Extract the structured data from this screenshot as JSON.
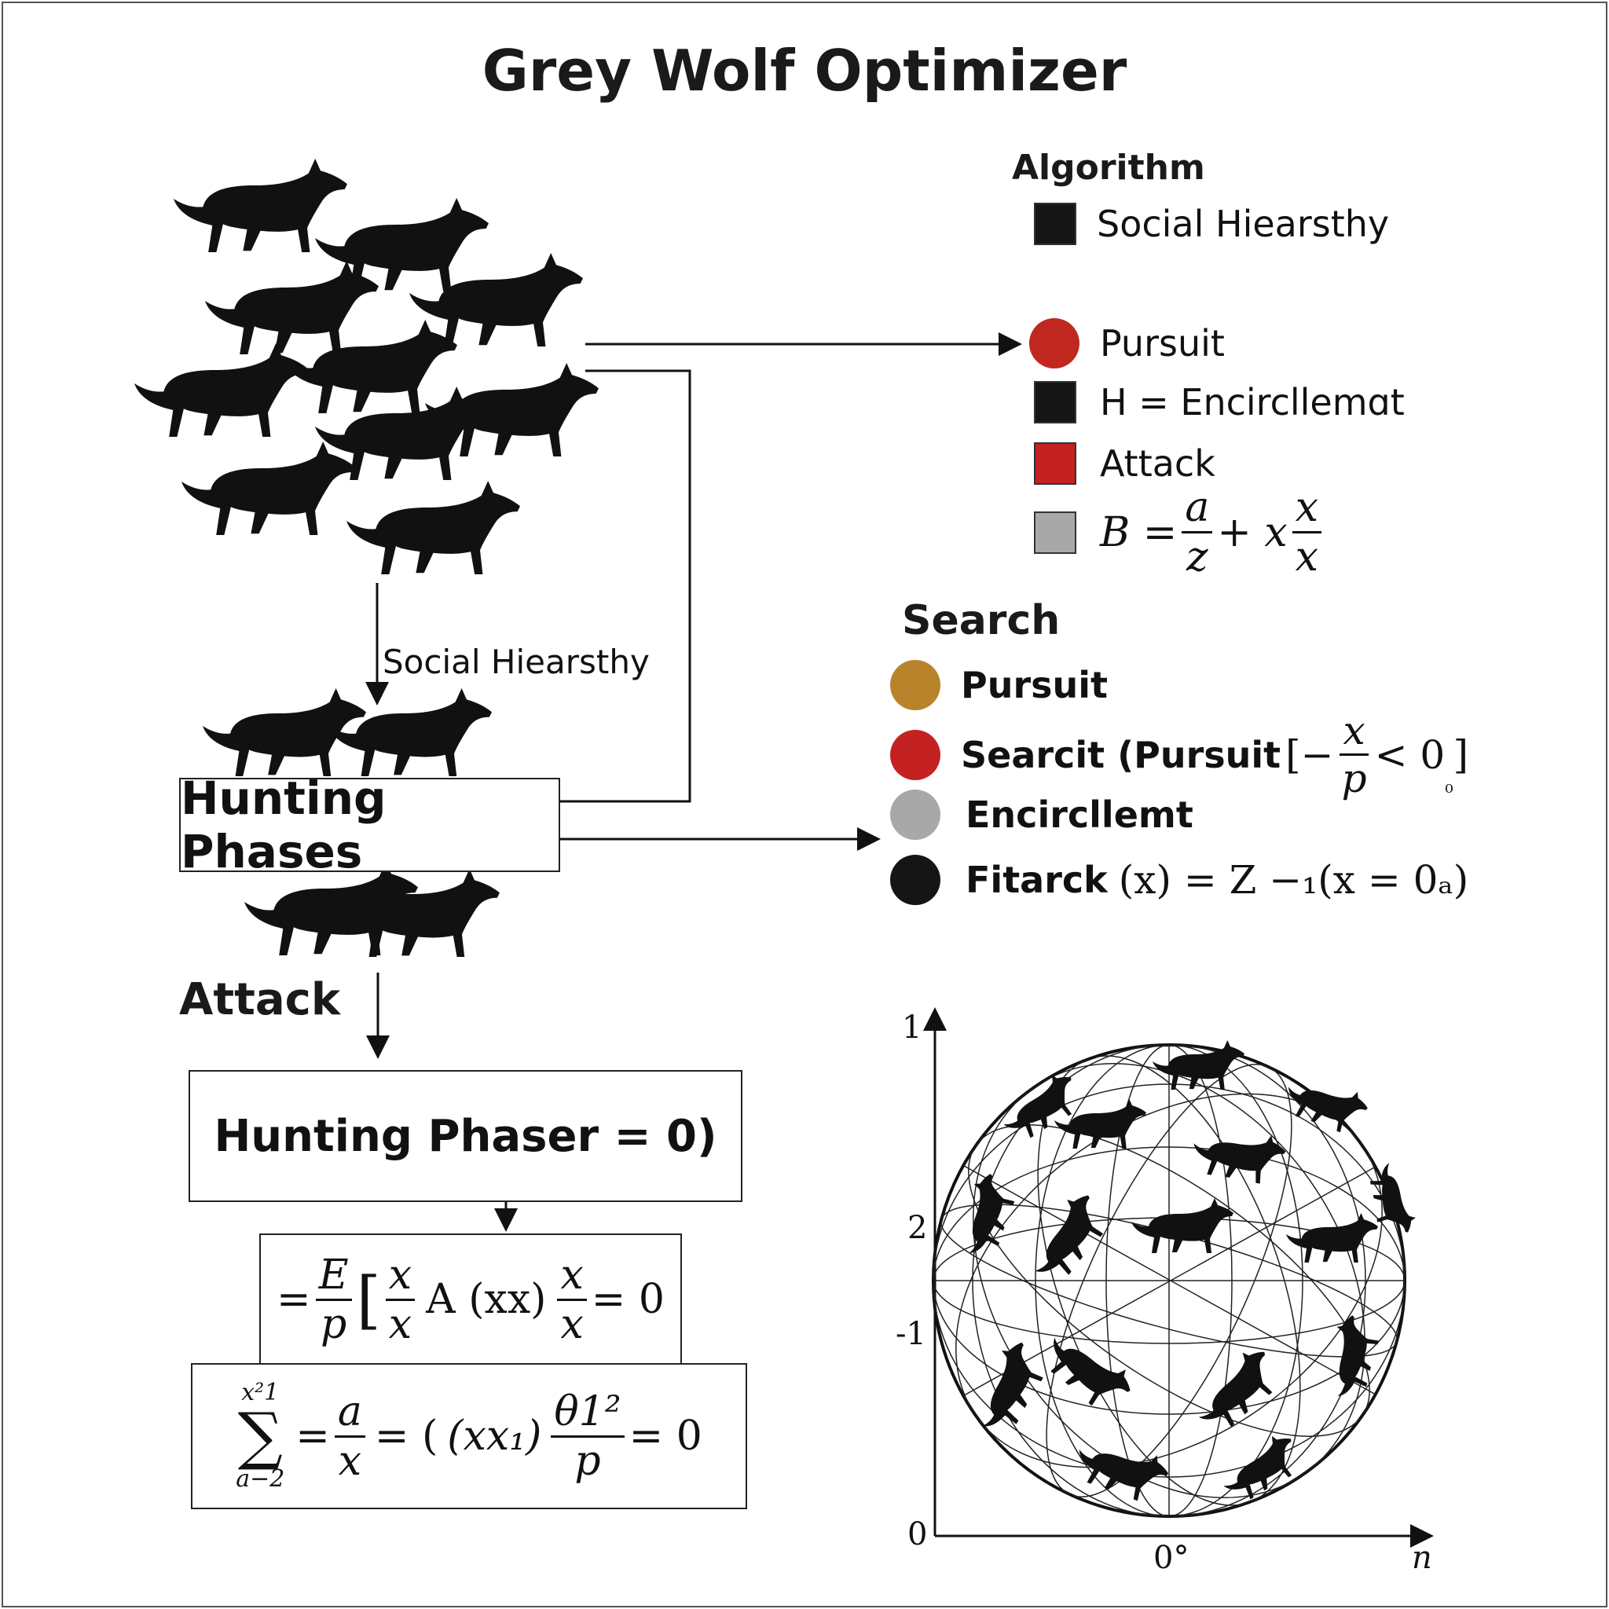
{
  "title": "Grey Wolf Optimizer",
  "algorithm": {
    "heading": "Algorithm",
    "items": [
      {
        "label": "Social Hiearsthy",
        "swatch": "square",
        "color": "#151515"
      },
      {
        "label": "Pursuit",
        "swatch": "circle",
        "color": "#c0281f"
      },
      {
        "label": "H = Encircllemɑt",
        "swatch": "square",
        "color": "#151515"
      },
      {
        "label": "Attack",
        "swatch": "square",
        "color": "#c42222"
      },
      {
        "label_parts": [
          "B =",
          "a",
          "z",
          "+ x",
          "x",
          "x"
        ],
        "swatch": "square",
        "color": "#a8a8a8"
      }
    ]
  },
  "search": {
    "heading": "Search",
    "items": [
      {
        "label": "Pursuit",
        "color": "#b8832a"
      },
      {
        "label": "Searcit (Pursuit",
        "math_parts": [
          "[−",
          "x",
          "p",
          "< 0",
          "₀",
          "]"
        ],
        "color": "#c42222"
      },
      {
        "label": "Encircllemt",
        "color": "#a8a8a8"
      },
      {
        "label": "Fitarck",
        "math": "(x) = Z −₁(x = 0ₐ)",
        "color": "#151515"
      }
    ]
  },
  "flow": {
    "social_label": "Social Hiearsthy",
    "hunting_phases": "Hunting Phases",
    "attack_label": "Attack",
    "hunting_phaser": "Hunting Phaser = 0)",
    "eq1_parts": [
      "=",
      "E",
      "p",
      "[",
      "x",
      "x",
      "A (xx)",
      "x",
      "x",
      "= 0"
    ],
    "eq2_parts": [
      "x²1",
      "a−2",
      "=",
      "a",
      "x",
      "= (",
      "(xx₁)",
      "θ1²",
      "p",
      "= 0"
    ]
  },
  "plot": {
    "y_ticks": [
      "1",
      "2",
      "-1",
      "0"
    ],
    "x_ticks": [
      "0°",
      "n"
    ]
  },
  "colors": {
    "ink": "#111111",
    "red": "#c42222",
    "orange": "#b8832a",
    "grey": "#a8a8a8"
  }
}
